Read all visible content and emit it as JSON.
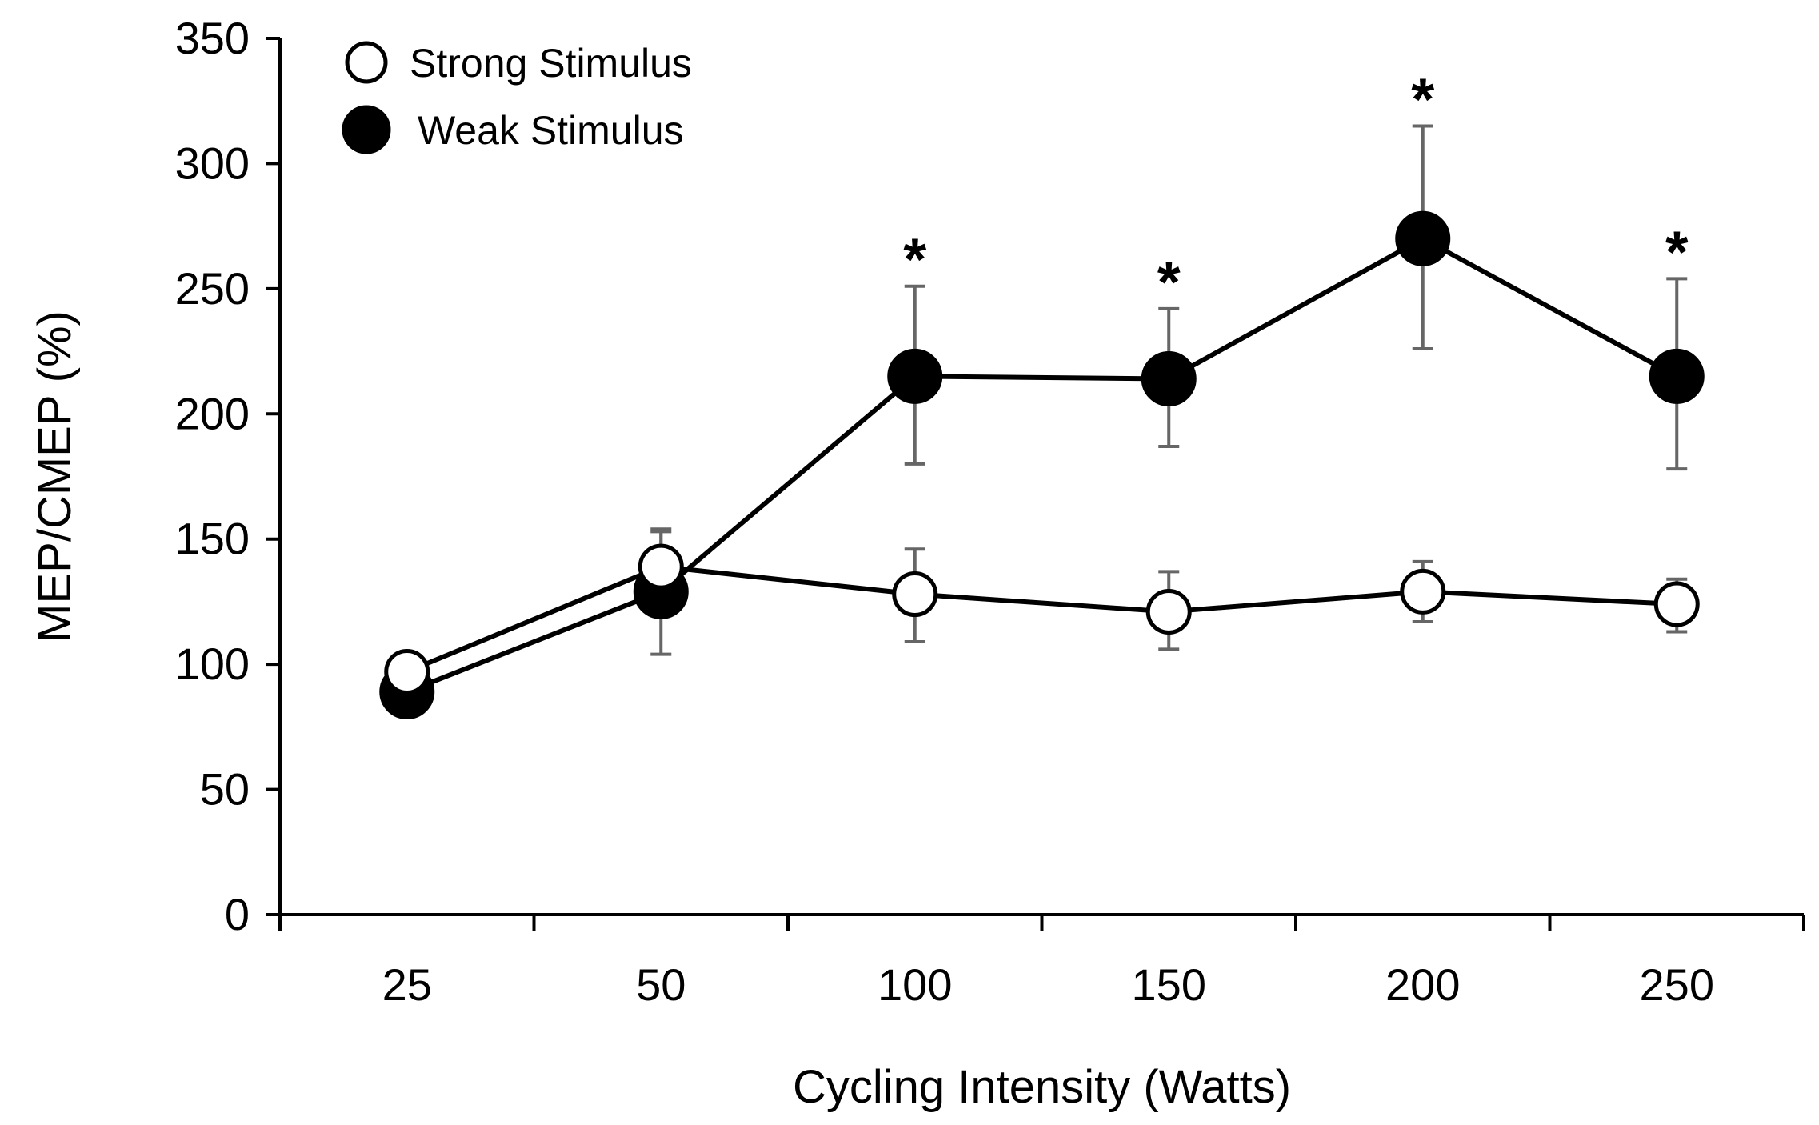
{
  "chart_data": {
    "type": "line",
    "title": "",
    "xlabel": "Cycling Intensity (Watts)",
    "ylabel": "MEP/CMEP (%)",
    "categories": [
      "25",
      "50",
      "100",
      "150",
      "200",
      "250"
    ],
    "ylim": [
      0,
      350
    ],
    "yticks": [
      0,
      50,
      100,
      150,
      200,
      250,
      300,
      350
    ],
    "grid": false,
    "legend_position": "top-left",
    "series": [
      {
        "name": "Strong Stimulus",
        "marker": "open-circle",
        "values": [
          97,
          139,
          128,
          121,
          129,
          124
        ],
        "error_upper": [
          97,
          154,
          146,
          137,
          141,
          134
        ],
        "error_lower": [
          97,
          124,
          109,
          106,
          117,
          113
        ]
      },
      {
        "name": "Weak Stimulus",
        "marker": "filled-circle",
        "values": [
          89,
          129,
          215,
          214,
          270,
          215
        ],
        "error_upper": [
          89,
          153,
          251,
          242,
          315,
          254
        ],
        "error_lower": [
          89,
          104,
          180,
          187,
          226,
          178
        ]
      }
    ],
    "annotations": [
      {
        "category": "100",
        "text": "*",
        "value": 251
      },
      {
        "category": "150",
        "text": "*",
        "value": 242
      },
      {
        "category": "200",
        "text": "*",
        "value": 315
      },
      {
        "category": "250",
        "text": "*",
        "value": 254
      }
    ],
    "colors": {
      "axis": "#000000",
      "line": "#000000",
      "error_bar": "#666666",
      "open_marker_fill": "#ffffff",
      "filled_marker_fill": "#000000"
    }
  }
}
